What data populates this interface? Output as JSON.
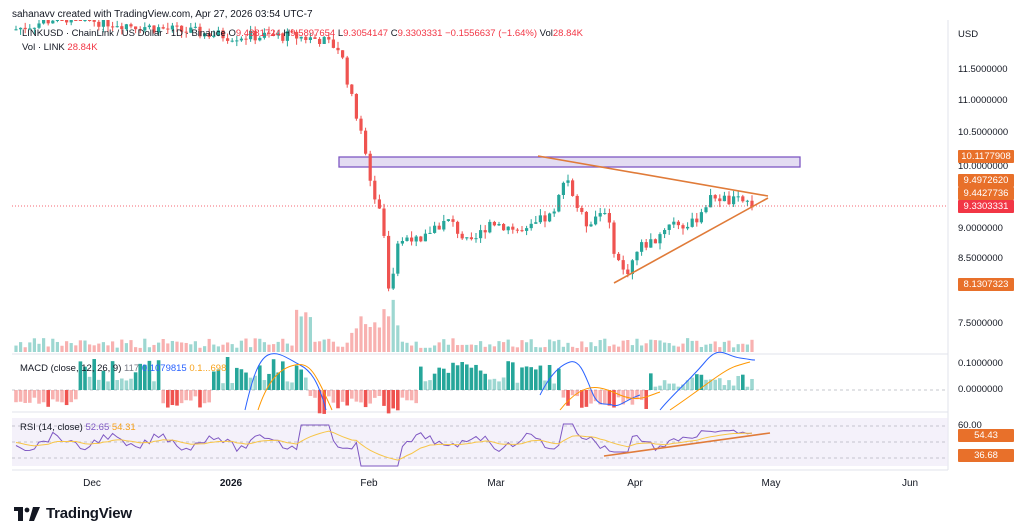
{
  "credit": "sahanavv created with TradingView.com, Apr 27, 2026 03:54 UTC-7",
  "symbol_line": {
    "symbol": "LINKUSD · ChainLink / US Dollar · 1D · Binance",
    "o_label": "O",
    "o_value": "9.4881724",
    "h_label": "H",
    "h_value": "9.5897654",
    "l_label": "L",
    "l_value": "9.3054147",
    "c_label": "C",
    "c_value": "9.3303331",
    "change": "−0.1556637 (−1.64%)",
    "vol_label": "Vol",
    "vol_value": "28.84",
    "vol_unit": "K"
  },
  "volume_line": {
    "label": "Vol · LINK",
    "value": "28.84K"
  },
  "currency": "USD",
  "price_scale": [
    "11.5000000",
    "11.0000000",
    "10.5000000",
    "10.0000000",
    "9.0000000",
    "8.5000000",
    "7.5000000"
  ],
  "price_labels": {
    "resistance": "10.1177908",
    "upper": "9.4972620",
    "middle": "9.4427736",
    "last": "9.3303331",
    "support": "8.1307323"
  },
  "macd": {
    "label": "MACD (close, 12, 26, 9)",
    "v1": "117",
    "v2": "0.1079815",
    "v3": "0.1...698",
    "scale": [
      "0.1000000",
      "0.0000000"
    ]
  },
  "rsi": {
    "label": "RSI (14, close)",
    "value": "52.65",
    "ma": "54.31",
    "scale_top": "60.00",
    "label_value": "54.43",
    "label_low": "36.68"
  },
  "x_axis": [
    "Dec",
    "2026",
    "Feb",
    "Mar",
    "Apr",
    "May",
    "Jun"
  ],
  "brand": "TradingView",
  "colors": {
    "up": "#26a69a",
    "down": "#ef5350",
    "resistance_zone_fill": "#d1c4e9",
    "resistance_zone_border": "#7e57c2",
    "trendline": "#e07b39",
    "last_price": "#f23645",
    "rsi_line": "#7e57c2",
    "rsi_ma": "#f7c548",
    "macd_line": "#2962ff",
    "signal_line": "#ff9800",
    "label_orange": "#e8702a"
  }
}
